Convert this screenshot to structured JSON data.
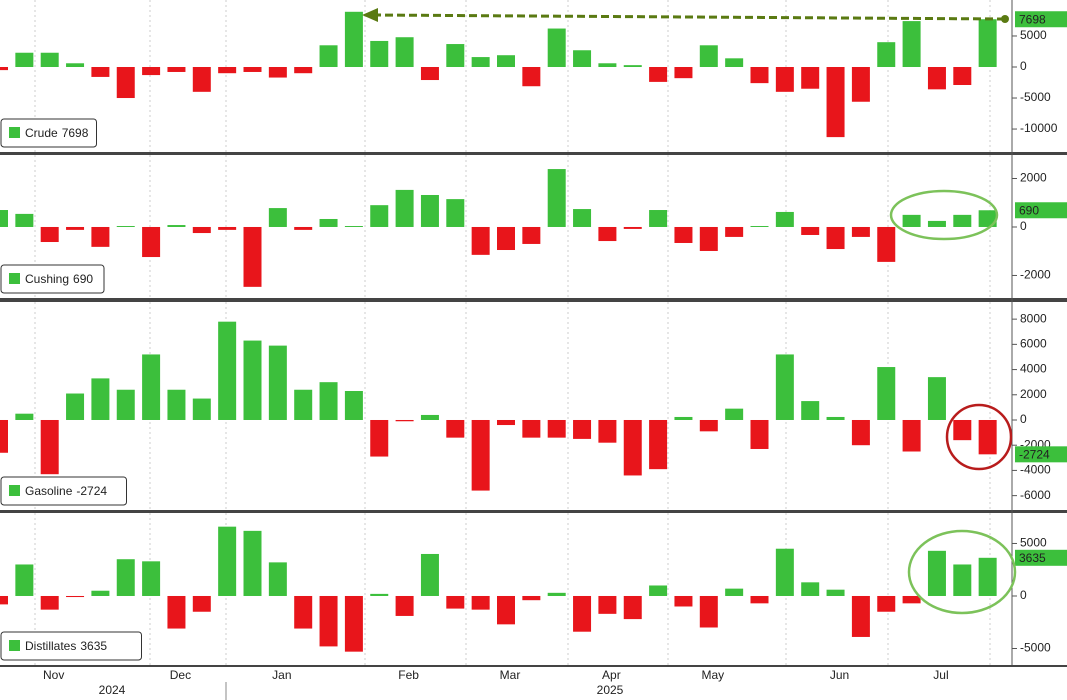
{
  "chart_data": [
    {
      "type": "bar",
      "series": [
        {
          "name": "Crude",
          "values": [
            -500,
            2300,
            2300,
            600,
            -1600,
            -5000,
            -1300,
            -800,
            -4000,
            -1000,
            -800,
            -1700,
            -1000,
            3500,
            8900,
            4200,
            4800,
            -2100,
            3700,
            1600,
            1900,
            -3100,
            6200,
            2700,
            600,
            300,
            -2400,
            -1800,
            3500,
            1400,
            -2600,
            -4000,
            -3500,
            -11300,
            -5600,
            4000,
            7400,
            -3600,
            -2900,
            7698
          ]
        }
      ],
      "ylim": [
        -13700,
        10800
      ],
      "yticks": [
        5000,
        0,
        -5000,
        -10000
      ],
      "positive_color": "#3cbf3c",
      "negative_color": "#e8151b"
    },
    {
      "type": "bar",
      "series": [
        {
          "name": "Cushing",
          "values": [
            700,
            540,
            -620,
            -120,
            -820,
            40,
            -1240,
            80,
            -250,
            -120,
            -2470,
            780,
            -120,
            330,
            40,
            900,
            1530,
            1320,
            1150,
            -1150,
            -950,
            -700,
            2390,
            740,
            -580,
            -80,
            700,
            -660,
            -990,
            -410,
            40,
            620,
            -330,
            -910,
            -410,
            -1440,
            500,
            250,
            500,
            690
          ]
        }
      ],
      "ylim": [
        -2930,
        2970
      ],
      "yticks": [
        2000,
        0,
        -2000
      ],
      "positive_color": "#3cbf3c",
      "negative_color": "#e8151b"
    },
    {
      "type": "bar",
      "series": [
        {
          "name": "Gasoline",
          "values": [
            -2600,
            500,
            -4300,
            2100,
            3300,
            2400,
            5200,
            2400,
            1700,
            7800,
            6300,
            5900,
            2400,
            3000,
            2300,
            -2900,
            -100,
            400,
            -1400,
            -5600,
            -400,
            -1400,
            -1400,
            -1500,
            -1800,
            -4400,
            -3900,
            240,
            -900,
            900,
            -2300,
            5200,
            1500,
            240,
            -2000,
            4200,
            -2500,
            3400,
            -1600,
            -2724
          ]
        }
      ],
      "ylim": [
        -7140,
        9360
      ],
      "yticks": [
        8000,
        6000,
        4000,
        2000,
        0,
        -2000,
        -4000,
        -6000
      ],
      "positive_color": "#3cbf3c",
      "negative_color": "#e8151b"
    },
    {
      "type": "bar",
      "series": [
        {
          "name": "Distillates",
          "values": [
            -800,
            3000,
            -1300,
            -100,
            500,
            3500,
            3300,
            -3100,
            -1500,
            6600,
            6200,
            3200,
            -3100,
            -4800,
            -5300,
            200,
            -1900,
            4000,
            -1200,
            -1300,
            -2700,
            -400,
            300,
            -3400,
            -1700,
            -2200,
            1000,
            -1000,
            -3000,
            700,
            -700,
            4500,
            1300,
            600,
            -3900,
            -1500,
            -700,
            4300,
            3000,
            3635
          ]
        }
      ],
      "ylim": [
        -6570,
        7900
      ],
      "yticks": [
        5000,
        0,
        -5000
      ],
      "positive_color": "#3cbf3c",
      "negative_color": "#e8151b",
      "categories": [
        null,
        null,
        "Nov",
        null,
        null,
        null,
        null,
        "Dec",
        null,
        null,
        null,
        "Jan",
        null,
        null,
        null,
        null,
        "Feb",
        null,
        null,
        null,
        "Mar",
        null,
        null,
        null,
        "Apr",
        null,
        null,
        null,
        "May",
        null,
        null,
        null,
        null,
        "Jun",
        null,
        null,
        null,
        "Jul",
        null,
        null
      ],
      "year_labels": [
        "2024",
        "2025"
      ]
    }
  ]
}
